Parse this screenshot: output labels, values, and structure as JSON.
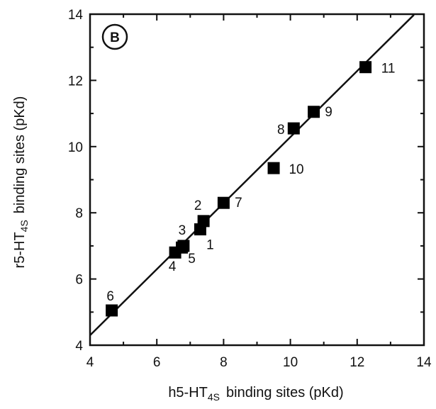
{
  "chart_data": {
    "type": "scatter",
    "panel_label": "B",
    "xlabel_main": "h5-HT",
    "xlabel_sub": "4S",
    "xlabel_rest": "binding sites  (pKd)",
    "ylabel_main": "r5-HT",
    "ylabel_sub": "4S",
    "ylabel_rest": "binding sites  (pKd)",
    "xlim": [
      4,
      14
    ],
    "ylim": [
      4,
      14
    ],
    "x_ticks": [
      4,
      6,
      8,
      10,
      12,
      14
    ],
    "y_ticks": [
      4,
      6,
      8,
      10,
      12,
      14
    ],
    "x_tick_labels": [
      "4",
      "6",
      "8",
      "10",
      "12",
      "14"
    ],
    "y_tick_labels": [
      "4",
      "6",
      "8",
      "10",
      "12",
      "14"
    ],
    "grid": false,
    "marker": "square",
    "marker_color": "#000000",
    "points": [
      {
        "label": "1",
        "x": 7.3,
        "y": 7.5
      },
      {
        "label": "2",
        "x": 7.4,
        "y": 7.75
      },
      {
        "label": "3",
        "x": 6.8,
        "y": 7.0
      },
      {
        "label": "4",
        "x": 6.55,
        "y": 6.8
      },
      {
        "label": "5",
        "x": 6.75,
        "y": 6.95
      },
      {
        "label": "6",
        "x": 4.65,
        "y": 5.05
      },
      {
        "label": "7",
        "x": 8.0,
        "y": 8.3
      },
      {
        "label": "8",
        "x": 10.1,
        "y": 10.55
      },
      {
        "label": "9",
        "x": 10.7,
        "y": 11.05
      },
      {
        "label": "10",
        "x": 9.5,
        "y": 9.35
      },
      {
        "label": "11",
        "x": 12.25,
        "y": 12.4
      }
    ],
    "regression_line": {
      "x": [
        4.0,
        13.7
      ],
      "y": [
        4.3,
        13.98
      ]
    }
  }
}
